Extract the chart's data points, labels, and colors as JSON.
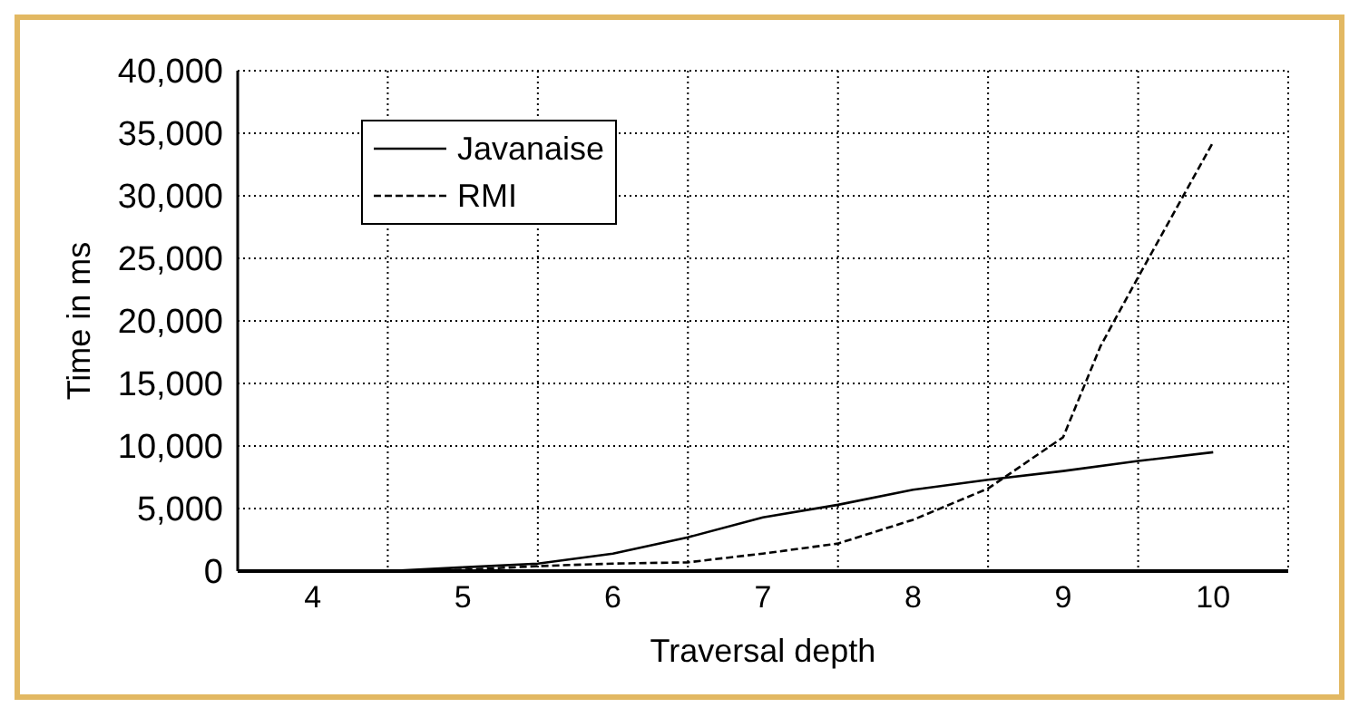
{
  "chart_data": {
    "type": "line",
    "xlabel": "Traversal depth",
    "ylabel": "Time in ms",
    "xlim": [
      3.5,
      10.5
    ],
    "xticks": [
      {
        "value": 4,
        "label": "4"
      },
      {
        "value": 4.5,
        "label": null
      },
      {
        "value": 5,
        "label": "5"
      },
      {
        "value": 5.5,
        "label": null
      },
      {
        "value": 6,
        "label": "6"
      },
      {
        "value": 6.5,
        "label": null
      },
      {
        "value": 7,
        "label": "7"
      },
      {
        "value": 7.5,
        "label": null
      },
      {
        "value": 8,
        "label": "8"
      },
      {
        "value": 8.5,
        "label": null
      },
      {
        "value": 9,
        "label": "9"
      },
      {
        "value": 9.5,
        "label": null
      },
      {
        "value": 10,
        "label": "10"
      }
    ],
    "ylim": [
      0,
      40000
    ],
    "yticks": [
      {
        "value": 0,
        "label": "0"
      },
      {
        "value": 5000,
        "label": "5,000"
      },
      {
        "value": 10000,
        "label": "10,000"
      },
      {
        "value": 15000,
        "label": "15,000"
      },
      {
        "value": 20000,
        "label": "20,000"
      },
      {
        "value": 25000,
        "label": "25,000"
      },
      {
        "value": 30000,
        "label": "30,000"
      },
      {
        "value": 35000,
        "label": "35,000"
      },
      {
        "value": 40000,
        "label": "40,000"
      }
    ],
    "grid": true,
    "legend": "top left",
    "marker": "none",
    "series": [
      {
        "name": "Javanaise",
        "color": "#000000",
        "line_style": "solid",
        "x": [
          4,
          4.5,
          5,
          5.5,
          6,
          6.5,
          7,
          7.5,
          8,
          8.5,
          9,
          9.5,
          10
        ],
        "values": [
          0,
          0,
          300,
          600,
          1400,
          2700,
          4300,
          5300,
          6500,
          7300,
          8000,
          8800,
          9500
        ]
      },
      {
        "name": "RMI",
        "color": "#000000",
        "line_style": "dashed",
        "x": [
          4,
          4.5,
          5,
          5.5,
          6,
          6.5,
          7,
          7.5,
          8,
          8.5,
          9,
          9.25,
          9.5,
          10
        ],
        "values": [
          0,
          0,
          100,
          400,
          600,
          700,
          1400,
          2200,
          4100,
          6600,
          10700,
          18000,
          23500,
          34300
        ]
      }
    ]
  }
}
